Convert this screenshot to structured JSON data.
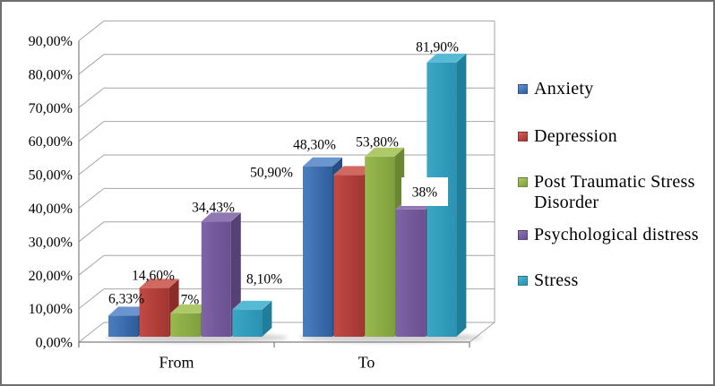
{
  "window": {
    "background": "#ffffff",
    "border_color": "#6f6f6f"
  },
  "chart_data": {
    "type": "bar",
    "subtype": "3d-clustered-column",
    "title": "",
    "xlabel": "",
    "ylabel": "",
    "categories": [
      "From",
      "To"
    ],
    "series": [
      {
        "name": "Anxiety",
        "values": [
          6.33,
          50.9
        ],
        "labels": [
          "6,33%",
          "50,90%"
        ],
        "colors": {
          "front_light": "#4a7dc1",
          "front_dark": "#2f5d9b",
          "top": "#6b95cf",
          "side": "#264e80"
        }
      },
      {
        "name": "Depression",
        "values": [
          14.6,
          48.3
        ],
        "labels": [
          "14,60%",
          "48,30%"
        ],
        "colors": {
          "front_light": "#c24a45",
          "front_dark": "#a23531",
          "top": "#d06a61",
          "side": "#8a2d2a"
        }
      },
      {
        "name": "Post Traumatic Stress Disorder",
        "values": [
          7,
          53.8
        ],
        "labels": [
          "7%",
          "53,80%"
        ],
        "colors": {
          "front_light": "#98b94f",
          "front_dark": "#7fa03d",
          "top": "#afc868",
          "side": "#6b8733"
        }
      },
      {
        "name": "Psychological distress",
        "values": [
          34.43,
          38
        ],
        "labels": [
          "34,43%",
          "38%"
        ],
        "colors": {
          "front_light": "#7f63a7",
          "front_dark": "#69508e",
          "top": "#9079b3",
          "side": "#574174"
        }
      },
      {
        "name": "Stress",
        "values": [
          8.1,
          81.9
        ],
        "labels": [
          "8,10%",
          "81,90%"
        ],
        "colors": {
          "front_light": "#3ba6c5",
          "front_dark": "#2a92b2",
          "top": "#57bad4",
          "side": "#217e9b"
        }
      }
    ],
    "y_axis_ticks": [
      "0,00%",
      "10,00%",
      "20,00%",
      "30,00%",
      "40,00%",
      "50,00%",
      "60,00%",
      "70,00%",
      "80,00%",
      "90,00%"
    ],
    "ylim": [
      0,
      90
    ],
    "y_tick_step": 10,
    "grid": true,
    "legend_position": "right",
    "gridline_color": "#a6a6a6",
    "axis_color": "#808080",
    "label_text_color": "#000000"
  }
}
